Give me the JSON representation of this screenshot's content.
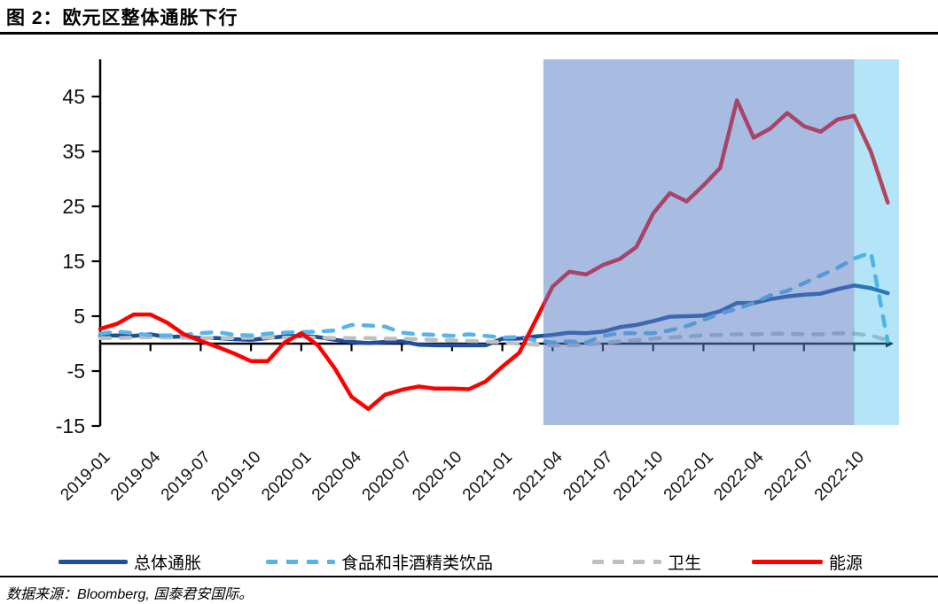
{
  "page": {
    "title": "图 2：欧元区整体通胀下行",
    "source_text": "数据来源：Bloomberg, 国泰君安国际。"
  },
  "legend": [
    {
      "label": "总体通胀",
      "color": "#1F4E9B",
      "dash": "solid"
    },
    {
      "label": "食品和非酒精类饮品",
      "color": "#56B4E9",
      "dash": "dashed"
    },
    {
      "label": "卫生",
      "color": "#BFBFBF",
      "dash": "dashed"
    },
    {
      "label": "能源",
      "color": "#FF0000",
      "dash": "solid"
    }
  ],
  "chart_data": {
    "type": "line",
    "title": "欧元区整体通胀下行",
    "xlabel": "",
    "ylabel": "",
    "ylim": [
      -16.5,
      51.8
    ],
    "y_ticks": [
      45,
      35,
      25,
      15,
      5,
      -5,
      -15
    ],
    "grid": false,
    "legend_position": "bottom",
    "x": [
      "2019-01",
      "2019-02",
      "2019-03",
      "2019-04",
      "2019-05",
      "2019-06",
      "2019-07",
      "2019-08",
      "2019-09",
      "2019-10",
      "2019-11",
      "2019-12",
      "2020-01",
      "2020-02",
      "2020-03",
      "2020-04",
      "2020-05",
      "2020-06",
      "2020-07",
      "2020-08",
      "2020-09",
      "2020-10",
      "2020-11",
      "2020-12",
      "2021-01",
      "2021-02",
      "2021-03",
      "2021-04",
      "2021-05",
      "2021-06",
      "2021-07",
      "2021-08",
      "2021-09",
      "2021-10",
      "2021-11",
      "2021-12",
      "2022-01",
      "2022-02",
      "2022-03",
      "2022-04",
      "2022-05",
      "2022-06",
      "2022-07",
      "2022-08",
      "2022-09",
      "2022-10",
      "2022-11",
      "2022-12"
    ],
    "x_tick_labels": [
      "2019-01",
      "2019-04",
      "2019-07",
      "2019-10",
      "2020-01",
      "2020-04",
      "2020-07",
      "2020-10",
      "2021-01",
      "2021-04",
      "2021-07",
      "2021-10",
      "2022-01",
      "2022-04",
      "2022-07",
      "2022-10"
    ],
    "series": [
      {
        "name": "总体通胀",
        "color": "#1F4E9B",
        "style": "solid",
        "values": [
          1.4,
          1.5,
          1.4,
          1.7,
          1.2,
          1.3,
          1.0,
          1.0,
          0.8,
          0.7,
          1.0,
          1.3,
          1.4,
          1.2,
          0.7,
          0.3,
          0.1,
          0.3,
          0.4,
          -0.2,
          -0.3,
          -0.3,
          -0.3,
          -0.3,
          0.9,
          0.9,
          1.3,
          1.6,
          2.0,
          1.9,
          2.2,
          3.0,
          3.4,
          4.1,
          4.9,
          5.0,
          5.1,
          5.9,
          7.4,
          7.4,
          8.1,
          8.6,
          8.9,
          9.1,
          9.9,
          10.6,
          10.1,
          9.2
        ]
      },
      {
        "name": "食品和非酒精类饮品",
        "color": "#56B4E9",
        "style": "dashed",
        "values": [
          1.8,
          2.2,
          1.9,
          1.5,
          1.5,
          1.6,
          1.9,
          2.1,
          1.6,
          1.5,
          1.8,
          2.0,
          2.1,
          2.2,
          2.4,
          3.4,
          3.3,
          3.1,
          2.0,
          1.7,
          1.6,
          1.4,
          1.7,
          1.4,
          1.1,
          1.2,
          0.6,
          0.2,
          0.4,
          0.2,
          1.4,
          1.9,
          1.9,
          1.9,
          2.4,
          3.2,
          4.3,
          5.5,
          6.3,
          7.4,
          8.8,
          9.6,
          11.0,
          12.4,
          13.8,
          15.5,
          16.6,
          0.4
        ]
      },
      {
        "name": "卫生",
        "color": "#BFBFBF",
        "style": "dashed",
        "values": [
          1.0,
          1.0,
          1.1,
          1.2,
          1.1,
          1.1,
          1.0,
          1.0,
          1.0,
          1.1,
          1.1,
          1.1,
          1.1,
          1.1,
          1.0,
          1.0,
          1.0,
          0.9,
          0.9,
          0.8,
          0.7,
          0.6,
          0.5,
          0.4,
          0.2,
          0.0,
          -0.2,
          -0.3,
          -0.3,
          -0.2,
          0.1,
          0.4,
          0.6,
          0.9,
          1.1,
          1.3,
          1.5,
          1.6,
          1.7,
          1.7,
          1.8,
          1.8,
          1.7,
          1.7,
          1.9,
          1.8,
          1.5,
          0.6
        ]
      },
      {
        "name": "能源",
        "color": "#FF0000",
        "style": "solid",
        "values": [
          2.7,
          3.6,
          5.3,
          5.3,
          3.8,
          1.7,
          0.5,
          -0.6,
          -1.8,
          -3.2,
          -3.2,
          0.2,
          1.9,
          -0.3,
          -4.5,
          -9.7,
          -11.9,
          -9.3,
          -8.4,
          -7.8,
          -8.2,
          -8.2,
          -8.3,
          -6.9,
          -4.2,
          -1.7,
          4.3,
          10.4,
          13.1,
          12.6,
          14.3,
          15.4,
          17.6,
          23.7,
          27.4,
          25.9,
          28.8,
          32.0,
          44.3,
          37.5,
          39.2,
          42.0,
          39.6,
          38.6,
          40.8,
          41.5,
          34.9,
          25.7
        ]
      }
    ],
    "highlight_regions": [
      {
        "from": "2021-04",
        "to": "2022-10",
        "color": "rgba(88,128,196,0.53)"
      },
      {
        "from": "2022-10",
        "to": "end",
        "color": "rgba(58,184,235,0.38)"
      }
    ]
  }
}
